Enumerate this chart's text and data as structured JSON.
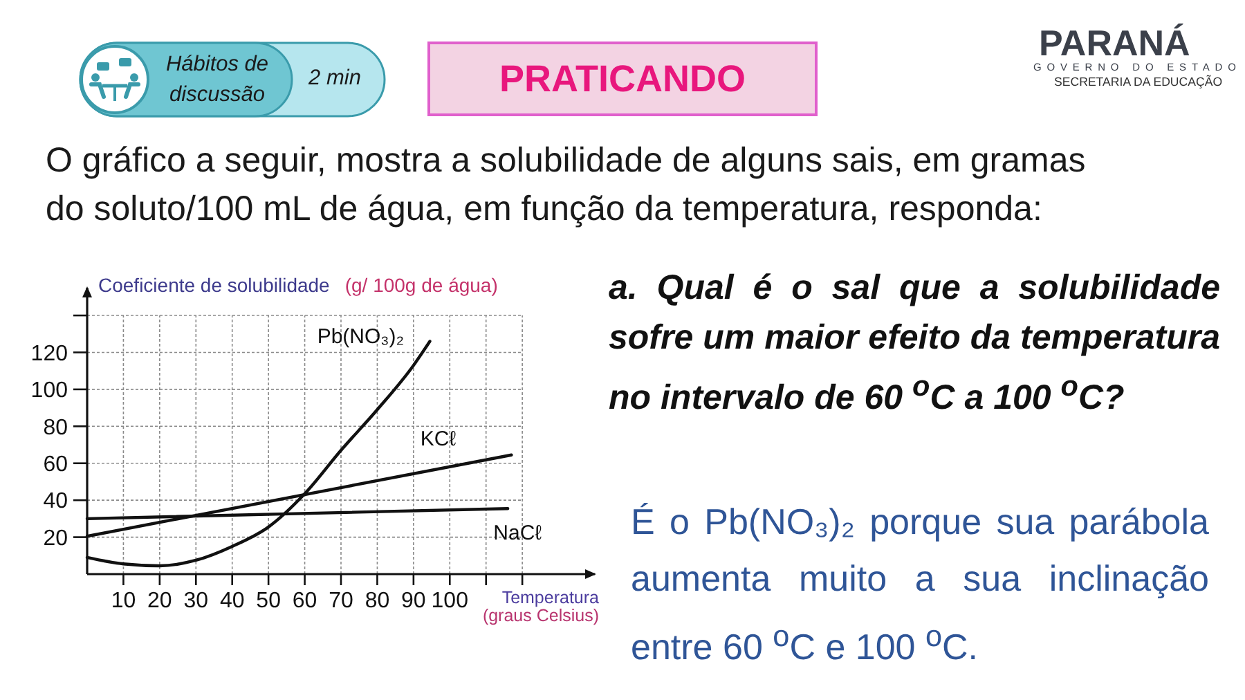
{
  "chart_data": {
    "type": "line",
    "title": "PRATICANDO",
    "subtitle": "O gráfico a seguir, mostra a solubilidade de alguns sais, em gramas do soluto/100 mL de água, em função da temperatura, responda:",
    "xlabel": "Temperatura (graus Celsius)",
    "ylabel": "Coeficiente de solubilidade (g/ 100g de água)",
    "annotations": [
      "Hábitos de discussão",
      "2 min",
      "a. Qual é o sal que a solubilidade sofre um maior efeito da temperatura no intervalo de 60 $^{o}$C a 100 $^{o}$C?",
      "É o Pb(NO₃)₂ porque sua parábola aumenta muito a sua inclinação entre 60 $^{o}$C e 100 $^{o}$C.",
      "PARANÁ",
      "GOVERNO DO ESTADO",
      "SECRETARIA DA EDUCAÇÃO"
    ],
    "series": [
      {
        "name": "Pb(NO₃)₂",
        "color": "#111111",
        "x": [
          0,
          10,
          20,
          30,
          40,
          50,
          60,
          70,
          80,
          90,
          94.5
        ],
        "values": [
          9,
          5.5,
          4.5,
          7.5,
          15,
          25.5,
          43.5,
          67,
          89,
          113,
          126
        ]
      },
      {
        "name": "KCℓ",
        "color": "#111111",
        "x": [
          0,
          117
        ],
        "values": [
          20.5,
          64.5
        ]
      },
      {
        "name": "NaCℓ",
        "color": "#111111",
        "x": [
          0,
          116
        ],
        "values": [
          30,
          35.5
        ]
      }
    ],
    "xlim": [
      0,
      140
    ],
    "xticks": [
      10,
      20,
      30,
      40,
      50,
      60,
      70,
      80,
      90,
      100,
      {
        "value": 110,
        "label": null
      },
      {
        "value": 120,
        "label": null
      }
    ],
    "ylim": [
      0,
      155
    ],
    "yticks": [
      20,
      40,
      60,
      80,
      100,
      120,
      {
        "value": 140,
        "label": null
      }
    ],
    "grid": true,
    "line_style": "solid"
  }
}
